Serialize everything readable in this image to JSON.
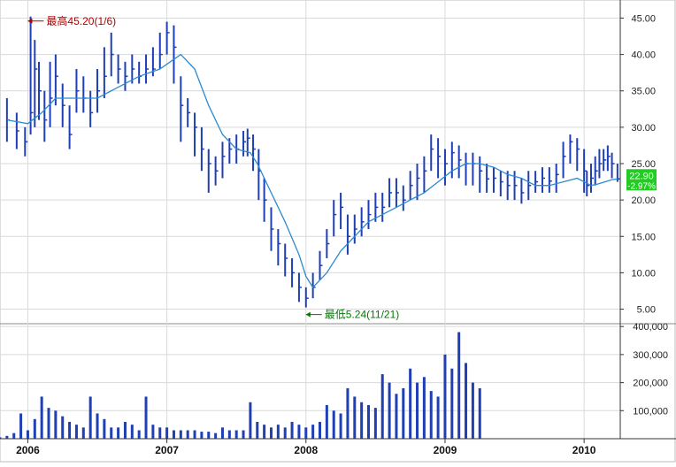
{
  "colors": {
    "bars": "#1f3fb5",
    "moving_average": "#2a8ad1",
    "grid": "#d9d9d9",
    "axis": "#333333",
    "annotation_high": "#b00000",
    "annotation_low": "#007a00",
    "last_price_badge": "#22cc22",
    "last_price_text": "#ffffff",
    "background": "#ffffff"
  },
  "chart_data": [
    {
      "type": "line",
      "title": "",
      "subtitle": "",
      "xlabel": "",
      "ylabel": "",
      "x_ticks": [
        "2006",
        "2007",
        "2008",
        "2009",
        "2010"
      ],
      "y_ticks": [
        "5.00",
        "10.00",
        "15.00",
        "20.00",
        "25.00",
        "30.00",
        "35.00",
        "40.00",
        "45.00"
      ],
      "ylim": [
        3,
        47
      ],
      "grid": true,
      "y_axis_side": "right",
      "series": [
        {
          "style": "price bars",
          "x": [
            2005.85,
            2005.92,
            2005.98,
            2006.02,
            2006.05,
            2006.08,
            2006.12,
            2006.16,
            2006.2,
            2006.25,
            2006.3,
            2006.35,
            2006.4,
            2006.45,
            2006.5,
            2006.55,
            2006.6,
            2006.65,
            2006.7,
            2006.75,
            2006.8,
            2006.85,
            2006.9,
            2006.95,
            2007.0,
            2007.05,
            2007.1,
            2007.15,
            2007.2,
            2007.25,
            2007.3,
            2007.35,
            2007.4,
            2007.45,
            2007.5,
            2007.55,
            2007.58,
            2007.62,
            2007.66,
            2007.7,
            2007.75,
            2007.8,
            2007.85,
            2007.9,
            2007.95,
            2008.0,
            2008.05,
            2008.1,
            2008.15,
            2008.2,
            2008.25,
            2008.3,
            2008.35,
            2008.4,
            2008.45,
            2008.5,
            2008.55,
            2008.6,
            2008.65,
            2008.7,
            2008.75,
            2008.8,
            2008.85,
            2008.9,
            2008.95,
            2009.0,
            2009.05,
            2009.1,
            2009.15,
            2009.2,
            2009.25,
            2009.3,
            2009.35,
            2009.4,
            2009.45,
            2009.5,
            2009.55,
            2009.6,
            2009.65,
            2009.7,
            2009.75,
            2009.8,
            2009.85,
            2009.9,
            2009.95,
            2010.0,
            2010.02,
            2010.05,
            2010.08,
            2010.11,
            2010.14,
            2010.17,
            2010.2,
            2010.24
          ],
          "values": [
            31,
            29.5,
            28,
            32,
            38,
            35,
            31,
            34,
            37,
            33,
            29,
            35,
            34,
            32,
            35,
            37,
            40,
            38,
            37,
            38,
            37,
            38,
            38,
            40,
            43,
            41,
            33,
            32,
            30,
            27,
            25,
            24,
            26,
            27,
            27,
            28,
            28.5,
            27,
            24,
            20,
            16,
            14,
            12,
            10,
            8,
            6.5,
            8,
            11,
            14,
            18,
            19,
            15,
            16,
            17,
            18,
            19,
            19,
            21,
            21,
            20,
            22,
            23,
            24,
            27,
            26,
            25,
            26.5,
            25.5,
            25,
            25,
            24,
            22.9,
            23,
            22.5,
            22,
            22,
            21,
            22,
            22.5,
            23,
            22.6,
            23.5,
            26,
            28,
            27,
            24,
            22,
            23,
            24,
            25,
            25.5,
            26,
            25,
            22.9
          ],
          "lows": [
            28,
            27,
            26,
            29,
            30,
            31,
            28,
            30,
            33,
            30,
            27,
            32,
            32,
            30,
            32,
            34,
            37,
            36,
            35,
            36,
            36,
            36,
            37,
            38,
            40,
            36,
            28,
            30,
            26,
            24,
            21,
            22,
            23,
            25,
            25,
            26,
            26,
            24,
            20,
            17,
            13,
            11,
            9.5,
            8,
            6,
            5.24,
            6.5,
            9,
            12,
            15,
            16,
            12.5,
            14,
            15,
            16,
            17,
            17,
            19,
            19,
            18.5,
            20,
            20,
            21,
            24,
            23,
            22,
            23,
            23,
            22,
            22,
            21,
            21,
            21,
            20.5,
            20,
            20,
            19.5,
            20,
            21,
            21,
            21,
            21,
            23,
            25,
            24,
            21,
            20.5,
            21,
            22,
            23,
            24,
            24,
            23,
            22.5
          ],
          "highs": [
            34,
            32,
            30,
            45.2,
            42,
            39,
            35,
            39,
            40,
            36,
            33,
            38,
            37,
            35,
            38,
            41,
            43,
            40,
            39,
            40,
            39,
            40,
            41,
            43,
            44.5,
            44,
            37,
            34,
            32,
            30,
            27,
            26,
            28,
            28.5,
            29,
            29.5,
            29.8,
            29,
            27,
            23,
            19,
            16,
            14,
            12,
            10,
            8,
            10,
            13,
            16,
            20,
            21,
            18,
            18,
            19,
            20,
            21,
            21,
            23,
            23,
            22,
            24,
            25,
            26,
            29,
            28.5,
            27,
            28,
            27.5,
            26.5,
            26.5,
            26,
            25,
            24.5,
            24,
            24,
            24,
            23,
            24,
            24,
            24.5,
            24.5,
            25,
            28,
            29,
            28.5,
            27,
            24,
            25,
            26,
            27,
            27,
            27.5,
            26.5,
            25
          ]
        },
        {
          "style": "moving average",
          "x": [
            2005.85,
            2006.0,
            2006.1,
            2006.2,
            2006.35,
            2006.5,
            2006.65,
            2006.8,
            2006.95,
            2007.1,
            2007.2,
            2007.3,
            2007.4,
            2007.5,
            2007.6,
            2007.65,
            2007.75,
            2007.85,
            2007.95,
            2008.0,
            2008.05,
            2008.15,
            2008.25,
            2008.35,
            2008.45,
            2008.55,
            2008.65,
            2008.75,
            2008.85,
            2008.95,
            2009.05,
            2009.15,
            2009.25,
            2009.35,
            2009.45,
            2009.55,
            2009.65,
            2009.75,
            2009.85,
            2009.95,
            2010.0,
            2010.05,
            2010.1,
            2010.15,
            2010.2,
            2010.24
          ],
          "values": [
            31,
            30.5,
            32,
            34,
            34,
            34,
            35.5,
            37,
            38,
            40,
            38,
            33,
            29,
            27,
            26.5,
            25,
            21,
            17,
            12.5,
            9.5,
            8,
            10,
            13,
            15,
            17,
            18,
            19,
            20,
            21,
            22.5,
            24,
            25,
            25,
            24.5,
            23.5,
            23,
            22,
            22,
            22.5,
            23,
            22.5,
            22,
            22.2,
            22.5,
            22.8,
            22.9
          ]
        }
      ],
      "annotations": [
        {
          "text": "最高45.20(1/6)",
          "x": 2006.0,
          "y": 45.2
        },
        {
          "text": "最低5.24(11/21)",
          "x": 2008.0,
          "y": 5.24
        }
      ],
      "last_price": {
        "value": "22.90",
        "change": "-2.97%"
      }
    },
    {
      "type": "bar",
      "title": "",
      "xlabel": "",
      "ylabel": "",
      "y_ticks": [
        "100,000",
        "200,000",
        "300,000",
        "400,000"
      ],
      "ylim": [
        0,
        410000
      ],
      "grid": true,
      "y_axis_side": "right",
      "series": [
        {
          "name": "",
          "x": [
            2005.8,
            2005.85,
            2005.9,
            2005.95,
            2006.0,
            2006.05,
            2006.1,
            2006.15,
            2006.2,
            2006.25,
            2006.3,
            2006.35,
            2006.4,
            2006.45,
            2006.5,
            2006.55,
            2006.6,
            2006.65,
            2006.7,
            2006.75,
            2006.8,
            2006.85,
            2006.9,
            2006.95,
            2007.0,
            2007.05,
            2007.1,
            2007.15,
            2007.2,
            2007.25,
            2007.3,
            2007.35,
            2007.4,
            2007.45,
            2007.5,
            2007.55,
            2007.6,
            2007.65,
            2007.7,
            2007.75,
            2007.8,
            2007.85,
            2007.9,
            2007.95,
            2008.0,
            2008.05,
            2008.1,
            2008.15,
            2008.2,
            2008.25,
            2008.3,
            2008.35,
            2008.4,
            2008.45,
            2008.5,
            2008.55,
            2008.6,
            2008.65,
            2008.7,
            2008.75,
            2008.8,
            2008.85,
            2008.9,
            2008.95,
            2009.0,
            2009.05,
            2009.1,
            2009.15,
            2009.2,
            2009.25
          ],
          "values": [
            5000,
            10000,
            20000,
            90000,
            30000,
            70000,
            150000,
            110000,
            100000,
            80000,
            60000,
            50000,
            40000,
            150000,
            90000,
            70000,
            40000,
            40000,
            60000,
            50000,
            30000,
            150000,
            50000,
            40000,
            40000,
            30000,
            30000,
            30000,
            30000,
            25000,
            25000,
            20000,
            40000,
            30000,
            30000,
            30000,
            130000,
            60000,
            50000,
            40000,
            50000,
            40000,
            60000,
            50000,
            40000,
            50000,
            60000,
            120000,
            100000,
            90000,
            180000,
            150000,
            130000,
            120000,
            110000,
            230000,
            200000,
            160000,
            180000,
            250000,
            200000,
            220000,
            170000,
            150000,
            300000,
            250000,
            380000,
            270000,
            200000,
            180000
          ]
        }
      ]
    }
  ]
}
